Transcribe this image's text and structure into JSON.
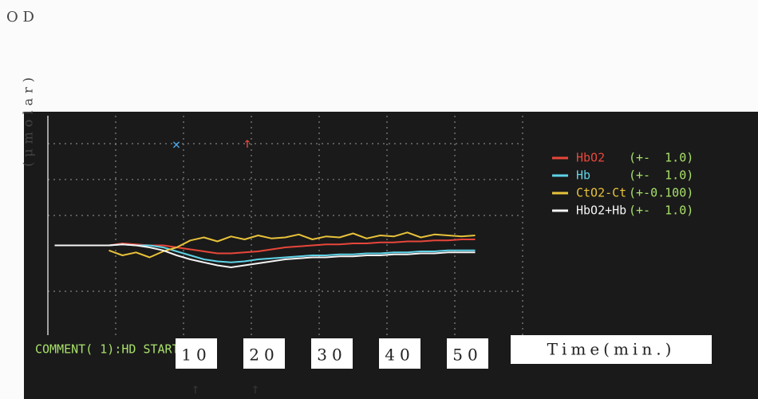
{
  "chart_data": {
    "type": "line",
    "ylabel_top": "O D",
    "ylabel": "(μmolar)",
    "xlabel": "Time(min.)",
    "comment": "COMMENT( 1):HD START",
    "x": [
      -9,
      -7,
      -5,
      -3,
      -1,
      1,
      3,
      5,
      7,
      9,
      11,
      13,
      15,
      17,
      19,
      21,
      23,
      25,
      27,
      29,
      31,
      33,
      35,
      37,
      39,
      41,
      43,
      45,
      47,
      49,
      51,
      53
    ],
    "xlim": [
      -10,
      60
    ],
    "xticks": [
      10,
      20,
      30,
      40,
      50
    ],
    "ylim": [
      -0.9,
      1.3
    ],
    "series": [
      {
        "name": "HbO2",
        "range": "(+-  1.0)",
        "color": "#e8463a",
        "values": [
          0,
          0,
          0,
          0,
          0,
          0.02,
          0.01,
          0,
          0,
          -0.02,
          -0.04,
          -0.06,
          -0.08,
          -0.08,
          -0.07,
          -0.06,
          -0.04,
          -0.02,
          -0.01,
          0,
          0.01,
          0.01,
          0.02,
          0.02,
          0.03,
          0.03,
          0.04,
          0.04,
          0.05,
          0.05,
          0.06,
          0.06
        ]
      },
      {
        "name": "Hb",
        "range": "(+-  1.0)",
        "color": "#5fd3e8",
        "values": [
          0,
          0,
          0,
          0,
          0,
          0.01,
          0,
          0,
          -0.02,
          -0.06,
          -0.1,
          -0.14,
          -0.16,
          -0.17,
          -0.16,
          -0.14,
          -0.13,
          -0.12,
          -0.11,
          -0.1,
          -0.1,
          -0.09,
          -0.09,
          -0.08,
          -0.08,
          -0.07,
          -0.07,
          -0.06,
          -0.06,
          -0.05,
          -0.05,
          -0.05
        ]
      },
      {
        "name": "CtO2-Ct",
        "range": "(+-0.100)",
        "color": "#e8c23a",
        "values": [
          null,
          null,
          null,
          null,
          -0.05,
          -0.1,
          -0.07,
          -0.12,
          -0.06,
          -0.02,
          0.05,
          0.08,
          0.04,
          0.09,
          0.06,
          0.1,
          0.07,
          0.08,
          0.11,
          0.06,
          0.09,
          0.08,
          0.12,
          0.07,
          0.1,
          0.09,
          0.13,
          0.08,
          0.11,
          0.1,
          0.09,
          0.1
        ]
      },
      {
        "name": "HbO2+Hb",
        "range": "(+-  1.0)",
        "color": "#f4f4f4",
        "values": [
          0,
          0,
          0,
          0,
          0,
          0.01,
          0,
          -0.02,
          -0.05,
          -0.1,
          -0.14,
          -0.17,
          -0.2,
          -0.22,
          -0.2,
          -0.18,
          -0.16,
          -0.14,
          -0.13,
          -0.12,
          -0.12,
          -0.11,
          -0.11,
          -0.1,
          -0.1,
          -0.09,
          -0.09,
          -0.08,
          -0.08,
          -0.07,
          -0.07,
          -0.07
        ]
      }
    ]
  }
}
